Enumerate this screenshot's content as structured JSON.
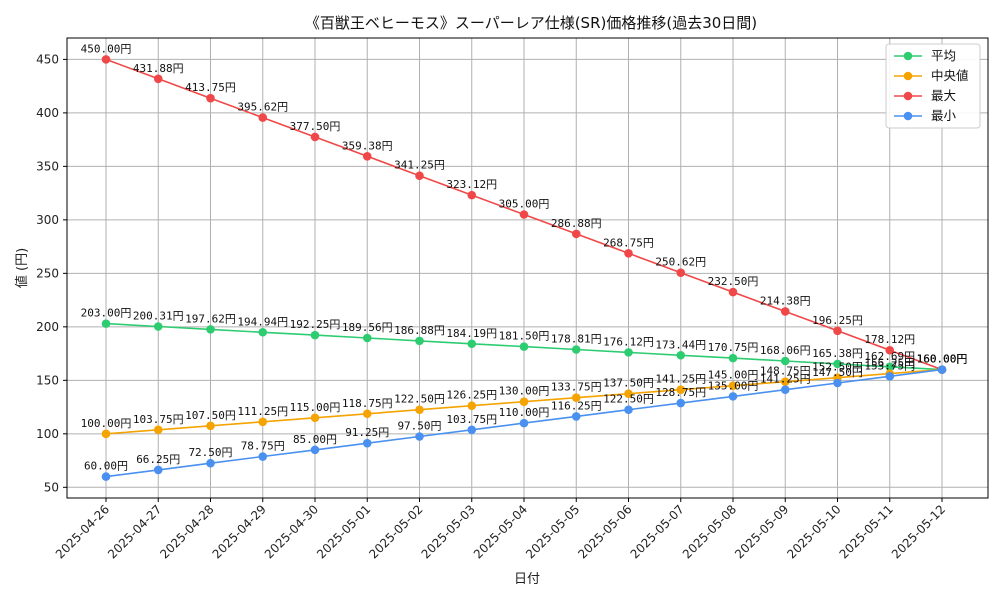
{
  "chart_data": {
    "type": "line",
    "title": "《百獣王ベヒーモス》スーパーレア仕様(SR)価格推移(過去30日間)",
    "xlabel": "日付",
    "ylabel": "値 (円)",
    "ylim": [
      40,
      470
    ],
    "yticks": [
      50,
      100,
      150,
      200,
      250,
      300,
      350,
      400,
      450
    ],
    "grid": true,
    "legend_position": "top-right",
    "label_suffix": "円",
    "x": [
      "2025-04-26",
      "2025-04-27",
      "2025-04-28",
      "2025-04-29",
      "2025-04-30",
      "2025-05-01",
      "2025-05-02",
      "2025-05-03",
      "2025-05-04",
      "2025-05-05",
      "2025-05-06",
      "2025-05-07",
      "2025-05-08",
      "2025-05-09",
      "2025-05-10",
      "2025-05-11",
      "2025-05-12"
    ],
    "series": [
      {
        "name": "平均",
        "color": "#2ecc71",
        "values": [
          203.0,
          200.31,
          197.62,
          194.94,
          192.25,
          189.56,
          186.88,
          184.19,
          181.5,
          178.81,
          176.12,
          173.44,
          170.75,
          168.06,
          165.38,
          162.69,
          160.0
        ],
        "labels": [
          "203.00円",
          "200.31円",
          "197.62円",
          "194.94円",
          "192.25円",
          "189.56円",
          "186.88円",
          "184.19円",
          "181.50円",
          "178.81円",
          "176.12円",
          "173.44円",
          "170.75円",
          "168.06円",
          "165.38円",
          "162.69円",
          "160.00円"
        ]
      },
      {
        "name": "中央値",
        "color": "#f5a300",
        "values": [
          100.0,
          103.75,
          107.5,
          111.25,
          115.0,
          118.75,
          122.5,
          126.25,
          130.0,
          133.75,
          137.5,
          141.25,
          145.0,
          148.75,
          152.5,
          156.25,
          160.0
        ],
        "labels": [
          "100.00円",
          "103.75円",
          "107.50円",
          "111.25円",
          "115.00円",
          "118.75円",
          "122.50円",
          "126.25円",
          "130.00円",
          "133.75円",
          "137.50円",
          "141.25円",
          "145.00円",
          "148.75円",
          "152.50円",
          "156.25円",
          "160.00円"
        ]
      },
      {
        "name": "最大",
        "color": "#f04848",
        "values": [
          450.0,
          431.88,
          413.75,
          395.62,
          377.5,
          359.38,
          341.25,
          323.12,
          305.0,
          286.88,
          268.75,
          250.62,
          232.5,
          214.38,
          196.25,
          178.12,
          160.0
        ],
        "labels": [
          "450.00円",
          "431.88円",
          "413.75円",
          "395.62円",
          "377.50円",
          "359.38円",
          "341.25円",
          "323.12円",
          "305.00円",
          "286.88円",
          "268.75円",
          "250.62円",
          "232.50円",
          "214.38円",
          "196.25円",
          "178.12円",
          "160.00円"
        ]
      },
      {
        "name": "最小",
        "color": "#4a90f0",
        "values": [
          60.0,
          66.25,
          72.5,
          78.75,
          85.0,
          91.25,
          97.5,
          103.75,
          110.0,
          116.25,
          122.5,
          128.75,
          135.0,
          141.25,
          147.5,
          153.75,
          160.0
        ],
        "labels": [
          "60.00円",
          "66.25円",
          "72.50円",
          "78.75円",
          "85.00円",
          "91.25円",
          "97.50円",
          "103.75円",
          "110.00円",
          "116.25円",
          "122.50円",
          "128.75円",
          "135.00円",
          "141.25円",
          "147.50円",
          "153.75円",
          "160.00円"
        ]
      }
    ]
  }
}
